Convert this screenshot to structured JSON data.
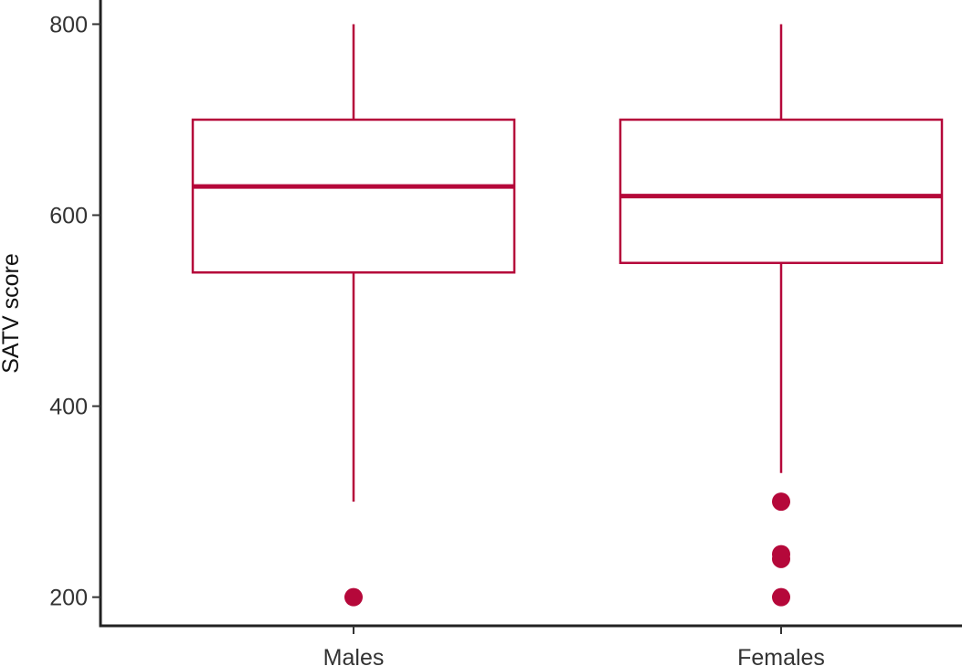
{
  "chart_data": {
    "type": "boxplot",
    "title": "",
    "xlabel": "",
    "ylabel": "SATV score",
    "ylim": [
      170,
      810
    ],
    "yticks": [
      200,
      400,
      600,
      800
    ],
    "grid": false,
    "color": "#b5083a",
    "categories": [
      "Males",
      "Females"
    ],
    "boxes": [
      {
        "category": "Males",
        "whisker_low": 300,
        "q1": 540,
        "median": 630,
        "q3": 700,
        "whisker_high": 800,
        "outliers": [
          200
        ]
      },
      {
        "category": "Females",
        "whisker_low": 330,
        "q1": 550,
        "median": 620,
        "q3": 700,
        "whisker_high": 800,
        "outliers": [
          300,
          245,
          240,
          200
        ]
      }
    ]
  }
}
